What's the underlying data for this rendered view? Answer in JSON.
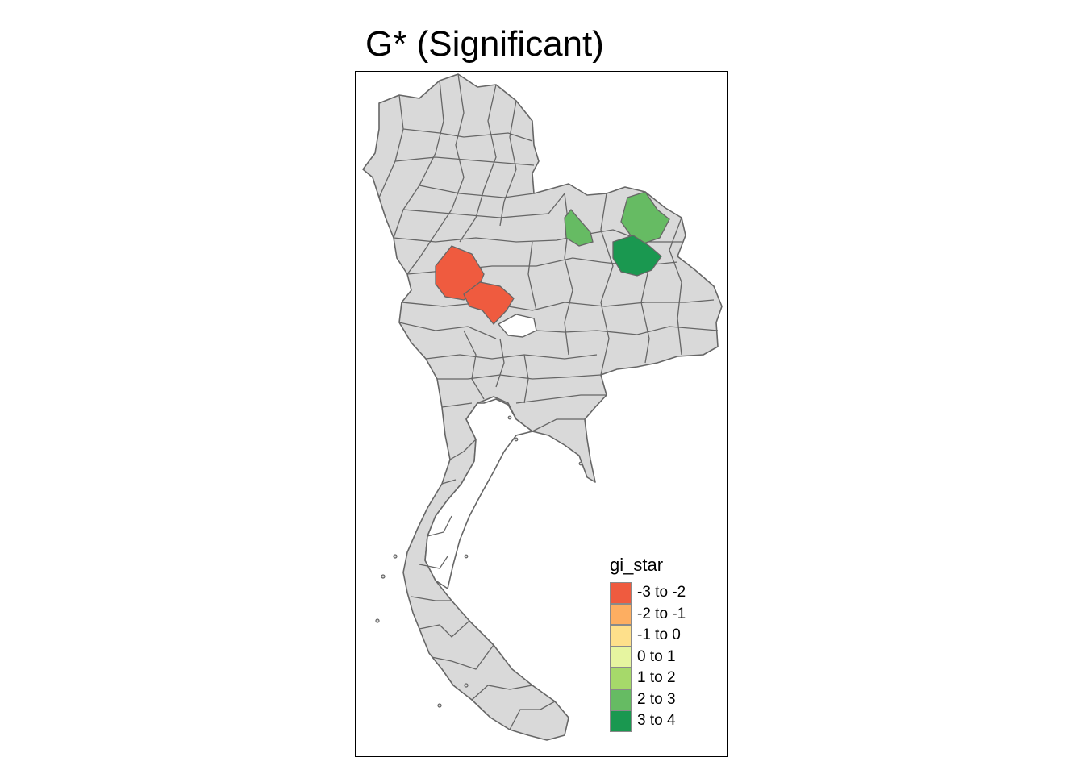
{
  "map": {
    "title": "G* (Significant)",
    "base_fill": "#d9d9d9",
    "border_color": "#666666",
    "significant_regions": [
      {
        "fill": "#ef5b3f",
        "class": "-3 to -2"
      },
      {
        "fill": "#ef5b3f",
        "class": "-3 to -2"
      },
      {
        "fill": "#66bb63",
        "class": "2 to 3"
      },
      {
        "fill": "#66bb63",
        "class": "2 to 3"
      },
      {
        "fill": "#1a9850",
        "class": "3 to 4"
      }
    ]
  },
  "legend": {
    "title": "gi_star",
    "items": [
      {
        "label": "-3 to -2",
        "color": "#ef5b3f"
      },
      {
        "label": "-2 to -1",
        "color": "#fdae61"
      },
      {
        "label": "-1 to 0",
        "color": "#fee08b"
      },
      {
        "label": "0 to 1",
        "color": "#e6f5a0"
      },
      {
        "label": "1 to 2",
        "color": "#a6d96a"
      },
      {
        "label": "2 to 3",
        "color": "#66bb63"
      },
      {
        "label": "3 to 4",
        "color": "#1a9850"
      }
    ]
  }
}
